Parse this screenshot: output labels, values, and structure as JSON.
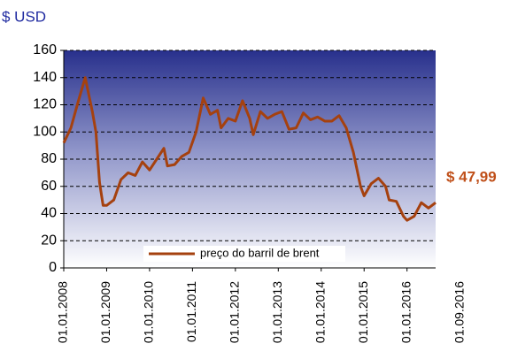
{
  "chart_data": {
    "type": "line",
    "y_axis_label": "$ USD",
    "x": [
      "2008-01",
      "2008-03",
      "2008-05",
      "2008-07",
      "2008-09",
      "2008-10",
      "2008-11",
      "2008-12",
      "2009-01",
      "2009-03",
      "2009-05",
      "2009-07",
      "2009-09",
      "2009-11",
      "2010-01",
      "2010-03",
      "2010-05",
      "2010-06",
      "2010-08",
      "2010-10",
      "2010-12",
      "2011-02",
      "2011-04",
      "2011-06",
      "2011-08",
      "2011-09",
      "2011-11",
      "2012-01",
      "2012-03",
      "2012-05",
      "2012-06",
      "2012-08",
      "2012-10",
      "2012-12",
      "2013-02",
      "2013-04",
      "2013-06",
      "2013-08",
      "2013-10",
      "2013-12",
      "2014-02",
      "2014-04",
      "2014-06",
      "2014-08",
      "2014-10",
      "2014-12",
      "2015-01",
      "2015-03",
      "2015-05",
      "2015-07",
      "2015-08",
      "2015-10",
      "2015-12",
      "2016-01",
      "2016-03",
      "2016-05",
      "2016-07",
      "2016-09"
    ],
    "series": [
      {
        "name": "preço do barril de brent",
        "color": "#a5410f",
        "values": [
          92,
          103,
          122,
          140,
          115,
          100,
          63,
          46,
          46,
          50,
          65,
          70,
          68,
          78,
          72,
          80,
          88,
          75,
          76,
          82,
          85,
          100,
          125,
          113,
          116,
          103,
          110,
          108,
          123,
          110,
          98,
          115,
          110,
          113,
          115,
          102,
          103,
          114,
          109,
          111,
          108,
          108,
          112,
          103,
          85,
          60,
          53,
          62,
          66,
          60,
          50,
          49,
          38,
          35,
          38,
          48,
          44,
          47.99
        ]
      }
    ],
    "xlim": [
      "2008-01",
      "2016-09"
    ],
    "xticks": [
      {
        "value": "2008-01",
        "label": "01.01.2008"
      },
      {
        "value": "2009-01",
        "label": "01.01.2009"
      },
      {
        "value": "2010-01",
        "label": "01.01.2010"
      },
      {
        "value": "2011-01",
        "label": "01.01.2011"
      },
      {
        "value": "2012-01",
        "label": "01.01.2012"
      },
      {
        "value": "2013-01",
        "label": "01.01.2013"
      },
      {
        "value": "2014-01",
        "label": "01.01.2014"
      },
      {
        "value": "2015-01",
        "label": "01.01.2015"
      },
      {
        "value": "2016-01",
        "label": "01.01.2016"
      }
    ],
    "ylim": [
      0,
      160
    ],
    "yticks": [
      0,
      20,
      40,
      60,
      80,
      100,
      120,
      140,
      160
    ],
    "grid": true,
    "legend": "bottom",
    "annotations": [
      {
        "text": "01.09.2016"
      },
      {
        "text": "$ 47,99",
        "color": "#c0501a"
      }
    ]
  }
}
